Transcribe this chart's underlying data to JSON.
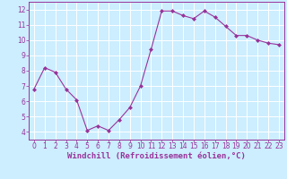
{
  "x": [
    0,
    1,
    2,
    3,
    4,
    5,
    6,
    7,
    8,
    9,
    10,
    11,
    12,
    13,
    14,
    15,
    16,
    17,
    18,
    19,
    20,
    21,
    22,
    23
  ],
  "y": [
    6.8,
    8.2,
    7.9,
    6.8,
    6.1,
    4.1,
    4.4,
    4.1,
    4.8,
    5.6,
    7.0,
    9.4,
    11.9,
    11.9,
    11.6,
    11.4,
    11.9,
    11.5,
    10.9,
    10.3,
    10.3,
    10.0,
    9.8,
    9.7
  ],
  "line_color": "#993399",
  "marker_color": "#993399",
  "bg_color": "#cceeff",
  "grid_color": "#ffffff",
  "xlabel": "Windchill (Refroidissement éolien,°C)",
  "xlabel_color": "#993399",
  "ylim": [
    3.5,
    12.5
  ],
  "xlim": [
    -0.5,
    23.5
  ],
  "yticks": [
    4,
    5,
    6,
    7,
    8,
    9,
    10,
    11,
    12
  ],
  "xticks": [
    0,
    1,
    2,
    3,
    4,
    5,
    6,
    7,
    8,
    9,
    10,
    11,
    12,
    13,
    14,
    15,
    16,
    17,
    18,
    19,
    20,
    21,
    22,
    23
  ],
  "tick_color": "#993399",
  "spine_color": "#993399",
  "label_fontsize": 6.5,
  "tick_fontsize": 5.5
}
